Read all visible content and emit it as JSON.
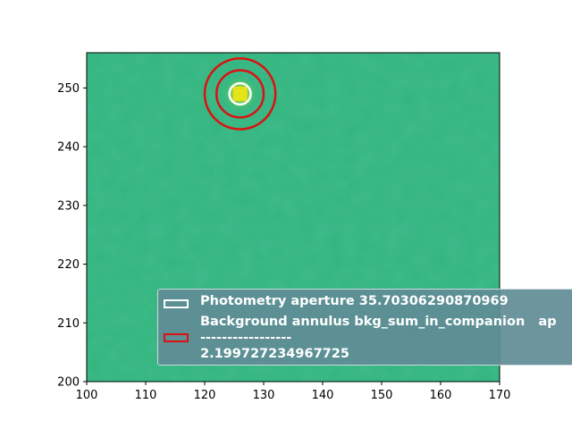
{
  "chart_data": {
    "type": "heatmap",
    "title": "",
    "xlabel": "",
    "ylabel": "",
    "xlim": [
      100,
      170
    ],
    "ylim": [
      200,
      256
    ],
    "x_ticks": [
      100,
      110,
      120,
      130,
      140,
      150,
      160,
      170
    ],
    "y_ticks": [
      200,
      210,
      220,
      230,
      240,
      250
    ],
    "colormap": "viridis",
    "background_color": "#33b57d",
    "source": {
      "x": 126,
      "y": 249,
      "color": "#e8e219"
    },
    "apertures": [
      {
        "name": "photometry-aperture",
        "cx": 126,
        "cy": 249,
        "r": 1.8,
        "color": "#ffffff"
      },
      {
        "name": "background-annulus-inner",
        "cx": 126,
        "cy": 249,
        "r": 4.0,
        "color": "#dd1111"
      },
      {
        "name": "background-annulus-outer",
        "cx": 126,
        "cy": 249,
        "r": 6.0,
        "color": "#dd1111"
      }
    ],
    "legend": {
      "placement": "lower-right",
      "entries": [
        {
          "label": "Photometry aperture 35.70306290870969",
          "color": "#ffffff"
        },
        {
          "label_lines": [
            "Background annulus bkg_sum_in_companion   ap",
            "-----------------",
            "2.199727234967725"
          ],
          "color": "#dd1111"
        }
      ]
    }
  }
}
